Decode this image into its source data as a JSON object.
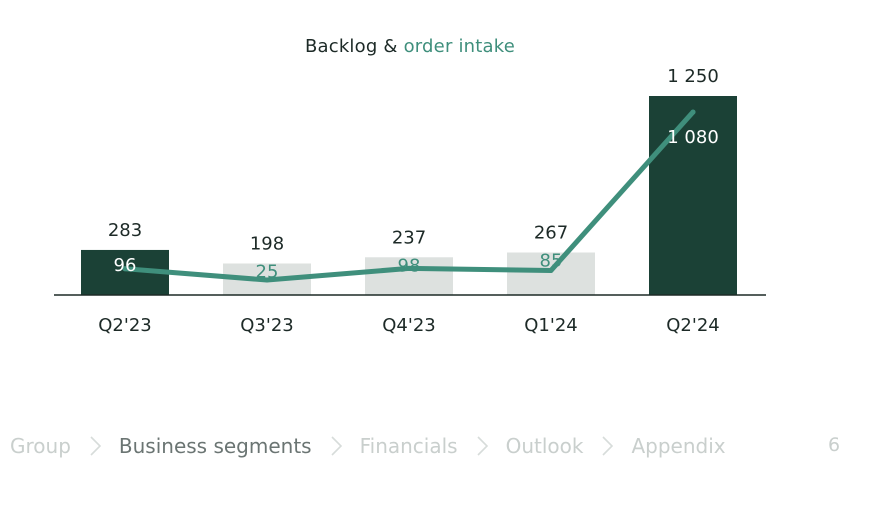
{
  "chart_data": {
    "type": "bar",
    "title_part1": "Backlog & ",
    "title_part2": "order intake",
    "categories": [
      "Q2'23",
      "Q3'23",
      "Q4'23",
      "Q1'24",
      "Q2'24"
    ],
    "series": [
      {
        "name": "Backlog",
        "kind": "bar",
        "values": [
          283,
          198,
          237,
          267,
          1250
        ],
        "value_labels": [
          "283",
          "198",
          "237",
          "267",
          "1 250"
        ]
      },
      {
        "name": "order intake",
        "kind": "line",
        "values": [
          96,
          25,
          98,
          85,
          1080
        ],
        "value_labels": [
          "96",
          "25",
          "98",
          "85",
          "1 080"
        ]
      }
    ],
    "bar_colors": [
      "#1b4136",
      "#dde1df",
      "#dde1df",
      "#dde1df",
      "#1b4136"
    ],
    "line_color": "#3f8f7c",
    "ylim": [
      0,
      1250
    ],
    "grid": false,
    "legend": "none"
  },
  "breadcrumb": {
    "items": [
      {
        "label": "Group",
        "active": false
      },
      {
        "label": "Business segments",
        "active": true
      },
      {
        "label": "Financials",
        "active": false
      },
      {
        "label": "Outlook",
        "active": false
      },
      {
        "label": "Appendix",
        "active": false
      }
    ],
    "page_number": "6"
  },
  "colors": {
    "dark_green": "#1b4136",
    "light_gray": "#dde1df",
    "accent_teal": "#3f8f7c",
    "text_dark": "#1d2a27",
    "breadcrumb_inactive": "#c9cfcd",
    "breadcrumb_active": "#6b7573"
  }
}
